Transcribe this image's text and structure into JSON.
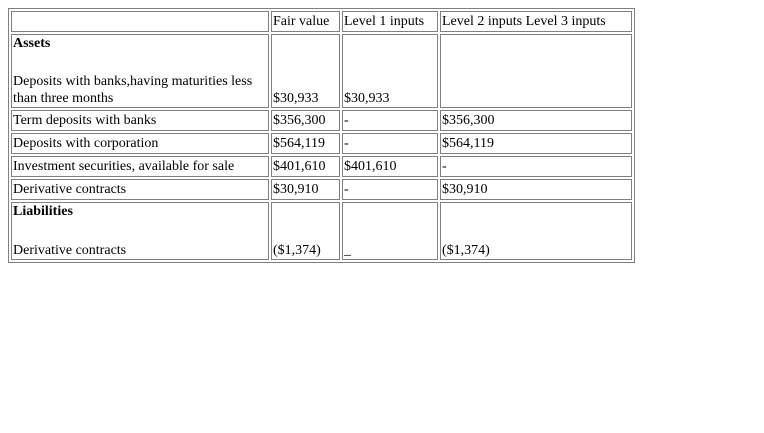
{
  "table": {
    "headers": {
      "label": "",
      "fair_value": "Fair value",
      "level1": "Level 1 inputs",
      "level23": "Level 2 inputs Level 3 inputs"
    },
    "sections": {
      "assets": "Assets",
      "liabilities": "Liabilities"
    },
    "rows": [
      {
        "label": "Deposits with banks,having maturities less than three months",
        "fair_value": "$30,933",
        "level1": "$30,933",
        "level23": ""
      },
      {
        "label": "Term deposits with banks",
        "fair_value": "$356,300",
        "level1": "-",
        "level23": "$356,300"
      },
      {
        "label": "Deposits with corporation",
        "fair_value": "$564,119",
        "level1": "-",
        "level23": "$564,119"
      },
      {
        "label": "Investment securities, available for sale",
        "fair_value": "$401,610",
        "level1": "$401,610",
        "level23": "-"
      },
      {
        "label": "Derivative contracts",
        "fair_value": "$30,910",
        "level1": "-",
        "level23": "$30,910"
      },
      {
        "label": "Derivative contracts",
        "fair_value": "($1,374)",
        "level1": "_",
        "level23": "($1,374)"
      }
    ]
  }
}
